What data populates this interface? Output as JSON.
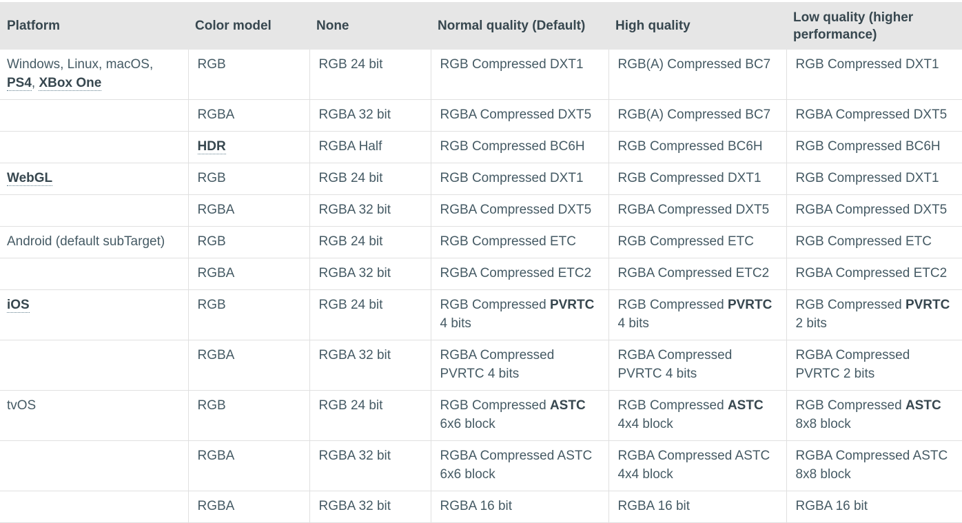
{
  "table": {
    "header": [
      "Platform",
      "Color model",
      "None",
      "Normal quality (Default)",
      "High quality",
      "Low quality (higher performance)"
    ],
    "rows": [
      [
        [
          "Windows, Linux, macOS, ",
          {
            "text": "PS4",
            "bold": true,
            "link": true
          },
          ", ",
          {
            "text": "XBox One",
            "bold": true,
            "link": true
          }
        ],
        [
          "RGB"
        ],
        [
          "RGB 24 bit"
        ],
        [
          "RGB Compressed DXT1"
        ],
        [
          "RGB(A) Compressed BC7"
        ],
        [
          "RGB Compressed DXT1"
        ]
      ],
      [
        [],
        [
          "RGBA"
        ],
        [
          "RGBA 32 bit"
        ],
        [
          "RGBA Compressed DXT5"
        ],
        [
          "RGB(A) Compressed BC7"
        ],
        [
          "RGBA Compressed DXT5"
        ]
      ],
      [
        [],
        [
          {
            "text": "HDR",
            "bold": true,
            "link": true
          }
        ],
        [
          "RGBA Half"
        ],
        [
          "RGB Compressed BC6H"
        ],
        [
          "RGB Compressed BC6H"
        ],
        [
          "RGB Compressed BC6H"
        ]
      ],
      [
        [
          {
            "text": "WebGL",
            "bold": true,
            "link": true
          }
        ],
        [
          "RGB"
        ],
        [
          "RGB 24 bit"
        ],
        [
          "RGB Compressed DXT1"
        ],
        [
          "RGB Compressed DXT1"
        ],
        [
          "RGB Compressed DXT1"
        ]
      ],
      [
        [],
        [
          "RGBA"
        ],
        [
          "RGBA 32 bit"
        ],
        [
          "RGBA Compressed DXT5"
        ],
        [
          "RGBA Compressed DXT5"
        ],
        [
          "RGBA Compressed DXT5"
        ]
      ],
      [
        [
          "Android (default subTarget)"
        ],
        [
          "RGB"
        ],
        [
          "RGB 24 bit"
        ],
        [
          "RGB Compressed ETC"
        ],
        [
          "RGB Compressed ETC"
        ],
        [
          "RGB Compressed ETC"
        ]
      ],
      [
        [],
        [
          "RGBA"
        ],
        [
          "RGBA 32 bit"
        ],
        [
          "RGBA Compressed ETC2"
        ],
        [
          "RGBA Compressed ETC2"
        ],
        [
          "RGBA Compressed ETC2"
        ]
      ],
      [
        [
          {
            "text": "iOS",
            "bold": true,
            "link": true
          }
        ],
        [
          "RGB"
        ],
        [
          "RGB 24 bit"
        ],
        [
          "RGB Compressed ",
          {
            "text": "PVRTC",
            "bold": true
          },
          " 4 bits"
        ],
        [
          "RGB Compressed ",
          {
            "text": "PVRTC",
            "bold": true
          },
          " 4 bits"
        ],
        [
          "RGB Compressed ",
          {
            "text": "PVRTC",
            "bold": true
          },
          " 2 bits"
        ]
      ],
      [
        [],
        [
          "RGBA"
        ],
        [
          "RGBA 32 bit"
        ],
        [
          "RGBA Compressed PVRTC 4 bits"
        ],
        [
          "RGBA Compressed PVRTC 4 bits"
        ],
        [
          "RGBA Compressed PVRTC 2 bits"
        ]
      ],
      [
        [
          "tvOS"
        ],
        [
          "RGB"
        ],
        [
          "RGB 24 bit"
        ],
        [
          "RGB Compressed ",
          {
            "text": "ASTC",
            "bold": true
          },
          " 6x6 block"
        ],
        [
          "RGB Compressed ",
          {
            "text": "ASTC",
            "bold": true
          },
          " 4x4 block"
        ],
        [
          "RGB Compressed ",
          {
            "text": "ASTC",
            "bold": true
          },
          " 8x8 block"
        ]
      ],
      [
        [],
        [
          "RGBA"
        ],
        [
          "RGBA 32 bit"
        ],
        [
          "RGBA Compressed ASTC 6x6 block"
        ],
        [
          "RGBA Compressed ASTC 4x4 block"
        ],
        [
          "RGBA Compressed ASTC 8x8 block"
        ]
      ],
      [
        [],
        [
          "RGBA"
        ],
        [
          "RGBA 32 bit"
        ],
        [
          "RGBA 16 bit"
        ],
        [
          "RGBA 16 bit"
        ],
        [
          "RGBA 16 bit"
        ]
      ]
    ]
  }
}
